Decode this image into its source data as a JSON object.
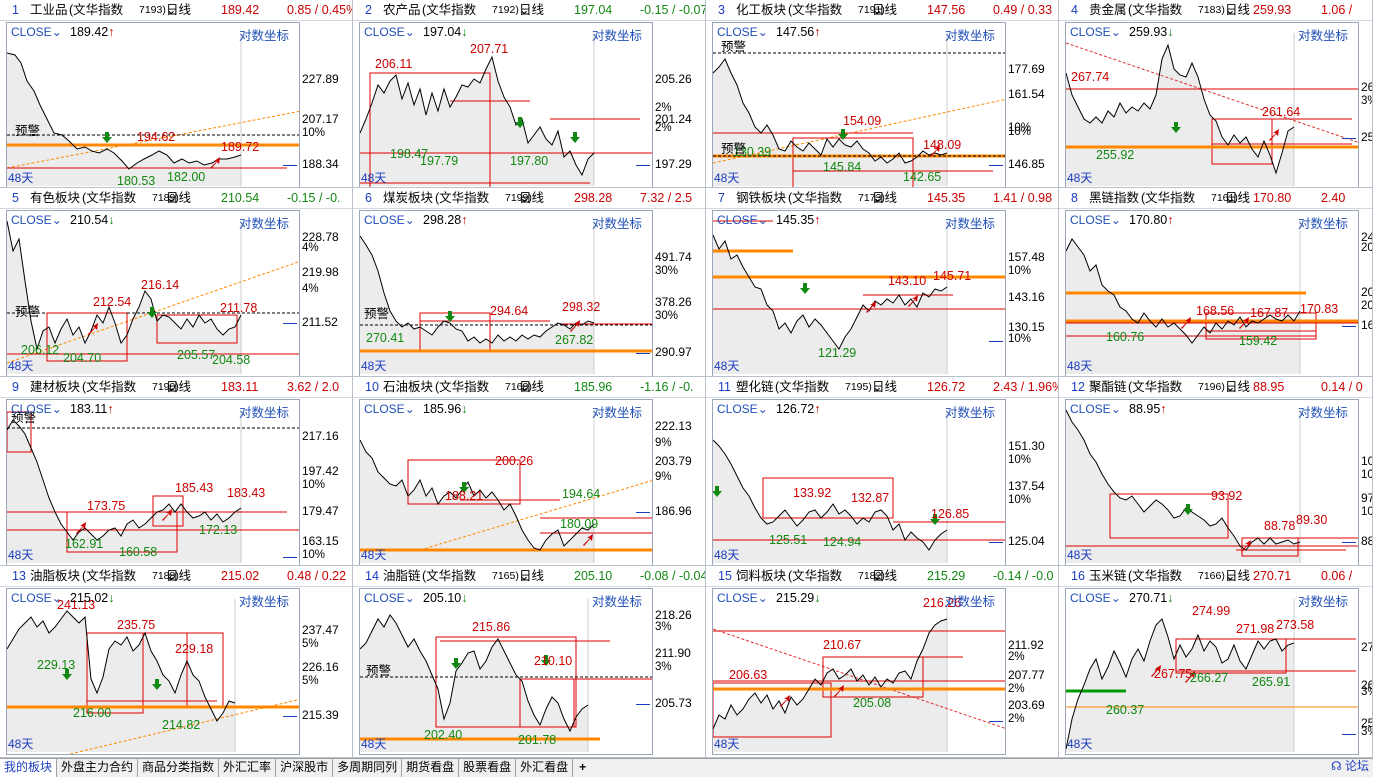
{
  "common": {
    "close_label": "CLOSE",
    "log_axis_label": "对数坐标",
    "days_label": "48天",
    "mode_label": "日线"
  },
  "colors": {
    "up": "#cc0000",
    "down": "#118811",
    "price_line": "#000000",
    "box": "#e00000",
    "support": "#ff8800",
    "support_green": "#009900",
    "trend": "#e03030",
    "alert": "#000000"
  },
  "panels": [
    {
      "idx": "1",
      "name": "工业品",
      "source": "(文华指数",
      "code": "7193)",
      "price": "189.42",
      "change": "0.85 / 0.45%",
      "change_dir": "up",
      "close_value": "189.42",
      "close_arrow": "↑",
      "close_dir": "up",
      "yaxis": [
        {
          "label": "227.89"
        },
        {
          "label": "207.17"
        },
        {
          "label": "10%"
        },
        {
          "label": "188.34"
        }
      ],
      "annotations": [
        {
          "text": "194.62",
          "c": "up"
        },
        {
          "text": "189.72",
          "c": "up"
        },
        {
          "text": "180.53",
          "c": "down"
        },
        {
          "text": "182.00",
          "c": "down"
        },
        {
          "text": "预警",
          "c": "alert"
        }
      ]
    },
    {
      "idx": "2",
      "name": "农产品",
      "source": "(文华指数",
      "code": "7192)",
      "price": "197.04",
      "change": "-0.15 / -0.07",
      "change_dir": "down",
      "close_value": "197.04",
      "close_arrow": "↓",
      "close_dir": "down",
      "yaxis": [
        {
          "label": "205.26"
        },
        {
          "label": "2%"
        },
        {
          "label": "201.24"
        },
        {
          "label": "2%"
        },
        {
          "label": "197.29"
        }
      ],
      "annotations": [
        {
          "text": "206.11",
          "c": "up"
        },
        {
          "text": "207.71",
          "c": "up"
        },
        {
          "text": "198.47",
          "c": "down"
        },
        {
          "text": "197.79",
          "c": "down"
        },
        {
          "text": "197.80",
          "c": "down"
        }
      ]
    },
    {
      "idx": "3",
      "name": "化工板块",
      "source": "(文华指数",
      "code": "7191)",
      "price": "147.56",
      "change": "0.49 / 0.33",
      "change_dir": "up",
      "close_value": "147.56",
      "close_arrow": "↑",
      "close_dir": "up",
      "yaxis": [
        {
          "label": "177.69"
        },
        {
          "label": "10%"
        },
        {
          "label": "161.54"
        },
        {
          "label": "10%"
        },
        {
          "label": "146.85"
        }
      ],
      "annotations": [
        {
          "text": "154.09",
          "c": "up"
        },
        {
          "text": "148.09",
          "c": "up"
        },
        {
          "text": "130.39",
          "c": "down"
        },
        {
          "text": "145.84",
          "c": "down"
        },
        {
          "text": "142.65",
          "c": "down"
        },
        {
          "text": "预警",
          "c": "alert"
        },
        {
          "text": "预警",
          "c": "alert"
        }
      ]
    },
    {
      "idx": "4",
      "name": "贵金属",
      "source": "(文华指数",
      "code": "7183)",
      "price": "259.93",
      "change": "1.06 /",
      "change_dir": "up",
      "close_value": "259.93",
      "close_arrow": "↓",
      "close_dir": "down",
      "yaxis": [
        {
          "label": "26"
        },
        {
          "label": "3%"
        },
        {
          "label": "25"
        }
      ],
      "annotations": [
        {
          "text": "267.74",
          "c": "up"
        },
        {
          "text": "261.64",
          "c": "up"
        },
        {
          "text": "255.92",
          "c": "down"
        }
      ]
    },
    {
      "idx": "5",
      "name": "有色板块",
      "source": "(文华指数",
      "code": "7189)",
      "price": "210.54",
      "change": "-0.15 / -0.",
      "change_dir": "down",
      "close_value": "210.54",
      "close_arrow": "↓",
      "close_dir": "down",
      "yaxis": [
        {
          "label": "228.78"
        },
        {
          "label": "4%"
        },
        {
          "label": "219.98"
        },
        {
          "label": "4%"
        },
        {
          "label": "211.52"
        }
      ],
      "annotations": [
        {
          "text": "212.54",
          "c": "up"
        },
        {
          "text": "216.14",
          "c": "up"
        },
        {
          "text": "211.78",
          "c": "up"
        },
        {
          "text": "206.12",
          "c": "down"
        },
        {
          "text": "204.70",
          "c": "down"
        },
        {
          "text": "205.57",
          "c": "down"
        },
        {
          "text": "204.58",
          "c": "down"
        },
        {
          "text": "预警",
          "c": "alert"
        }
      ]
    },
    {
      "idx": "6",
      "name": "煤炭板块",
      "source": "(文华指数",
      "code": "7199)",
      "price": "298.28",
      "change": "7.32 / 2.5",
      "change_dir": "up",
      "close_value": "298.28",
      "close_arrow": "↑",
      "close_dir": "up",
      "yaxis": [
        {
          "label": "491.74"
        },
        {
          "label": "30%"
        },
        {
          "label": "378.26"
        },
        {
          "label": "30%"
        },
        {
          "label": "290.97"
        }
      ],
      "annotations": [
        {
          "text": "294.64",
          "c": "up"
        },
        {
          "text": "298.32",
          "c": "up"
        },
        {
          "text": "270.41",
          "c": "down"
        },
        {
          "text": "267.82",
          "c": "down"
        },
        {
          "text": "预警",
          "c": "alert"
        }
      ]
    },
    {
      "idx": "7",
      "name": "钢铁板块",
      "source": "(文华指数",
      "code": "7173)",
      "price": "145.35",
      "change": "1.41 / 0.98",
      "change_dir": "up",
      "close_value": "145.35",
      "close_arrow": "↑",
      "close_dir": "up",
      "yaxis": [
        {
          "label": "157.48"
        },
        {
          "label": "10%"
        },
        {
          "label": "143.16"
        },
        {
          "label": "130.15"
        },
        {
          "label": "10%"
        }
      ],
      "annotations": [
        {
          "text": "143.10",
          "c": "up"
        },
        {
          "text": "145.71",
          "c": "up"
        },
        {
          "text": "121.29",
          "c": "down"
        }
      ]
    },
    {
      "idx": "8",
      "name": "黑链指数",
      "source": "(文华指数",
      "code": "7161)",
      "price": "170.80",
      "change": "2.40",
      "change_dir": "up",
      "close_value": "170.80",
      "close_arrow": "↑",
      "close_dir": "up",
      "yaxis": [
        {
          "label": "24"
        },
        {
          "label": "20%"
        },
        {
          "label": "20"
        },
        {
          "label": "20%"
        },
        {
          "label": "16"
        }
      ],
      "annotations": [
        {
          "text": "168.56",
          "c": "up"
        },
        {
          "text": "167.87",
          "c": "up"
        },
        {
          "text": "170.83",
          "c": "up"
        },
        {
          "text": "160.76",
          "c": "down"
        },
        {
          "text": "159.42",
          "c": "down"
        }
      ]
    },
    {
      "idx": "9",
      "name": "建材板块",
      "source": "(文华指数",
      "code": "7190)",
      "price": "183.11",
      "change": "3.62 / 2.0",
      "change_dir": "up",
      "close_value": "183.11",
      "close_arrow": "↑",
      "close_dir": "up",
      "yaxis": [
        {
          "label": "217.16"
        },
        {
          "label": "197.42"
        },
        {
          "label": "10%"
        },
        {
          "label": "179.47"
        },
        {
          "label": "163.15"
        },
        {
          "label": "10%"
        }
      ],
      "annotations": [
        {
          "text": "173.75",
          "c": "up"
        },
        {
          "text": "185.43",
          "c": "up"
        },
        {
          "text": "183.43",
          "c": "up"
        },
        {
          "text": "162.91",
          "c": "down"
        },
        {
          "text": "160.58",
          "c": "down"
        },
        {
          "text": "172.13",
          "c": "down"
        },
        {
          "text": "预警",
          "c": "alert"
        }
      ]
    },
    {
      "idx": "10",
      "name": "石油板块",
      "source": "(文华指数",
      "code": "7168)",
      "price": "185.96",
      "change": "-1.16 / -0.",
      "change_dir": "down",
      "close_value": "185.96",
      "close_arrow": "↓",
      "close_dir": "down",
      "yaxis": [
        {
          "label": "222.13"
        },
        {
          "label": "9%"
        },
        {
          "label": "203.79"
        },
        {
          "label": "9%"
        },
        {
          "label": "186.96"
        }
      ],
      "annotations": [
        {
          "text": "200.26",
          "c": "up"
        },
        {
          "text": "188.21",
          "c": "up"
        },
        {
          "text": "194.64",
          "c": "down"
        },
        {
          "text": "180.09",
          "c": "down"
        }
      ]
    },
    {
      "idx": "11",
      "name": "塑化链",
      "source": "(文华指数",
      "code": "7195)",
      "price": "126.72",
      "change": "2.43 / 1.96%",
      "change_dir": "up",
      "close_value": "126.72",
      "close_arrow": "↑",
      "close_dir": "up",
      "yaxis": [
        {
          "label": "151.30"
        },
        {
          "label": "10%"
        },
        {
          "label": "137.54"
        },
        {
          "label": "10%"
        },
        {
          "label": "125.04"
        }
      ],
      "annotations": [
        {
          "text": "133.92",
          "c": "up"
        },
        {
          "text": "132.87",
          "c": "up"
        },
        {
          "text": "126.85",
          "c": "up"
        },
        {
          "text": "125.51",
          "c": "down"
        },
        {
          "text": "124.94",
          "c": "down"
        }
      ]
    },
    {
      "idx": "12",
      "name": "聚酯链",
      "source": "(文华指数",
      "code": "7196)",
      "price": "88.95",
      "change": "0.14 / 0",
      "change_dir": "up",
      "close_value": "88.95",
      "close_arrow": "↑",
      "close_dir": "up",
      "yaxis": [
        {
          "label": "10"
        },
        {
          "label": "10%"
        },
        {
          "label": "97."
        },
        {
          "label": "10%"
        },
        {
          "label": "88."
        }
      ],
      "annotations": [
        {
          "text": "93.92",
          "c": "up"
        },
        {
          "text": "88.78",
          "c": "up"
        },
        {
          "text": "89.30",
          "c": "up"
        }
      ]
    },
    {
      "idx": "13",
      "name": "油脂板块",
      "source": "(文华指数",
      "code": "7188)",
      "price": "215.02",
      "change": "0.48 / 0.22",
      "change_dir": "up",
      "close_value": "215.02",
      "close_arrow": "↓",
      "close_dir": "down",
      "yaxis": [
        {
          "label": "237.47"
        },
        {
          "label": "5%"
        },
        {
          "label": "226.16"
        },
        {
          "label": "5%"
        },
        {
          "label": "215.39"
        }
      ],
      "annotations": [
        {
          "text": "241.13",
          "c": "up"
        },
        {
          "text": "235.75",
          "c": "up"
        },
        {
          "text": "229.18",
          "c": "up"
        },
        {
          "text": "229.13",
          "c": "down"
        },
        {
          "text": "216.00",
          "c": "down"
        },
        {
          "text": "214.82",
          "c": "down"
        }
      ]
    },
    {
      "idx": "14",
      "name": "油脂链",
      "source": "(文华指数",
      "code": "7165)",
      "price": "205.10",
      "change": "-0.08 / -0.04",
      "change_dir": "down",
      "close_value": "205.10",
      "close_arrow": "↓",
      "close_dir": "down",
      "yaxis": [
        {
          "label": "218.26"
        },
        {
          "label": "3%"
        },
        {
          "label": "211.90"
        },
        {
          "label": "3%"
        },
        {
          "label": "205.73"
        }
      ],
      "annotations": [
        {
          "text": "215.86",
          "c": "up"
        },
        {
          "text": "210.10",
          "c": "up"
        },
        {
          "text": "202.40",
          "c": "down"
        },
        {
          "text": "201.78",
          "c": "down"
        },
        {
          "text": "预警",
          "c": "alert"
        }
      ]
    },
    {
      "idx": "15",
      "name": "饲料板块",
      "source": "(文华指数",
      "code": "7182)",
      "price": "215.29",
      "change": "-0.14 / -0.0",
      "change_dir": "down",
      "close_value": "215.29",
      "close_arrow": "↓",
      "close_dir": "down",
      "yaxis": [
        {
          "label": "211.92"
        },
        {
          "label": "2%"
        },
        {
          "label": "207.77"
        },
        {
          "label": "2%"
        },
        {
          "label": "203.69"
        },
        {
          "label": "2%"
        }
      ],
      "annotations": [
        {
          "text": "216.26",
          "c": "up"
        },
        {
          "text": "210.67",
          "c": "up"
        },
        {
          "text": "206.63",
          "c": "up"
        },
        {
          "text": "205.08",
          "c": "down"
        }
      ]
    },
    {
      "idx": "16",
      "name": "玉米链",
      "source": "(文华指数",
      "code": "7166)",
      "price": "270.71",
      "change": "0.06 /",
      "change_dir": "up",
      "close_value": "270.71",
      "close_arrow": "↓",
      "close_dir": "down",
      "yaxis": [
        {
          "label": "270"
        },
        {
          "label": "26"
        },
        {
          "label": "3%"
        },
        {
          "label": "25"
        },
        {
          "label": "3%"
        }
      ],
      "annotations": [
        {
          "text": "274.99",
          "c": "up"
        },
        {
          "text": "271.98",
          "c": "up"
        },
        {
          "text": "273.58",
          "c": "up"
        },
        {
          "text": "267.75",
          "c": "up"
        },
        {
          "text": "266.27",
          "c": "down"
        },
        {
          "text": "265.91",
          "c": "down"
        },
        {
          "text": "260.37",
          "c": "down"
        }
      ]
    }
  ],
  "tabs": [
    "我的板块",
    "外盘主力合约",
    "商品分类指数",
    "外汇汇率",
    "沪深股市",
    "多周期同列",
    "期货看盘",
    "股票看盘",
    "外汇看盘"
  ],
  "add_tab": "+",
  "forum_link": "论坛"
}
